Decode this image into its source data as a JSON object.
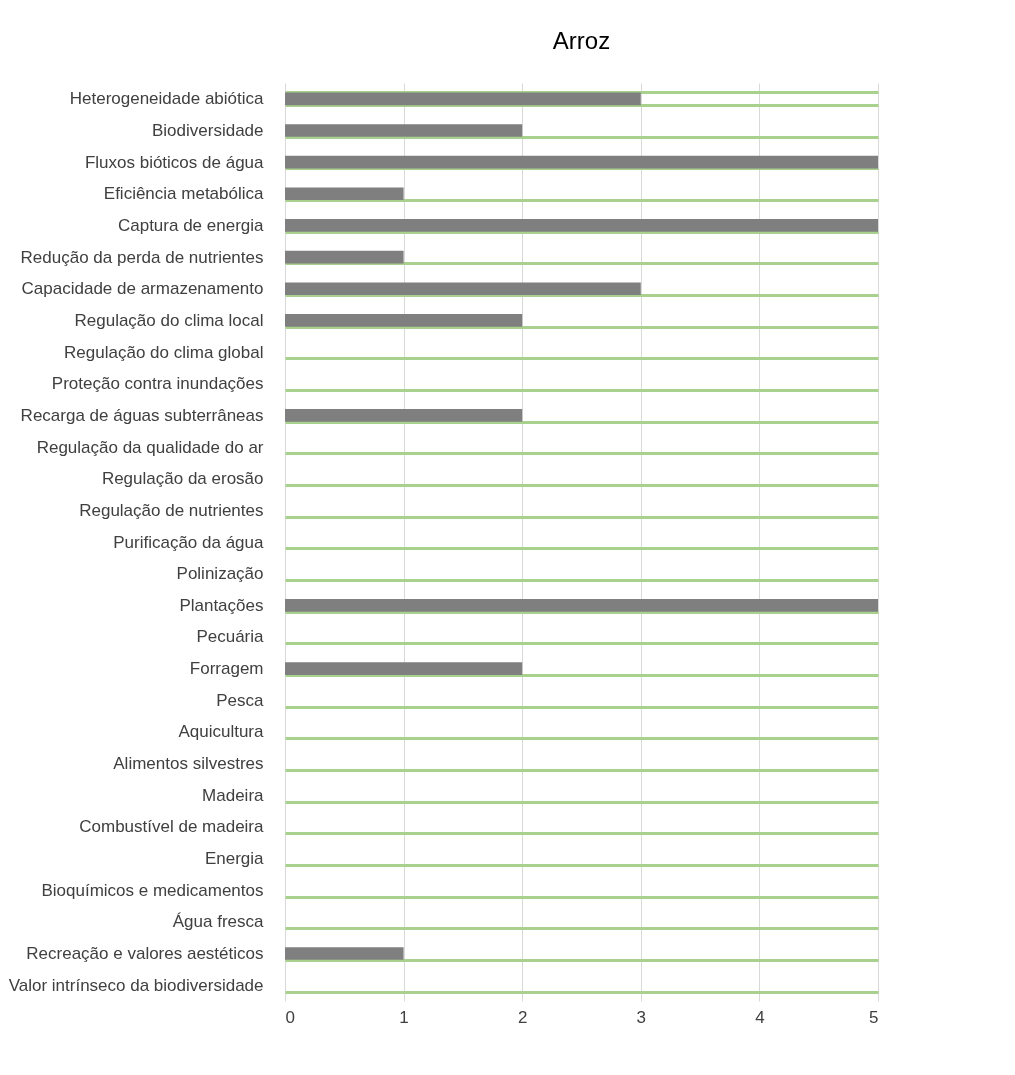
{
  "chart_data": {
    "type": "bar",
    "orientation": "horizontal",
    "title": "Arroz",
    "categories": [
      "Heterogeneidade abiótica",
      "Biodiversidade",
      "Fluxos bióticos de água",
      "Eficiência metabólica",
      "Captura de energia",
      "Redução da perda de nutrientes",
      "Capacidade de armazenamento",
      "Regulação do clima local",
      "Regulação do clima global",
      "Proteção contra inundações",
      "Recarga de águas subterrâneas",
      "Regulação da qualidade do ar",
      "Regulação da erosão",
      "Regulação de nutrientes",
      "Purificação da água",
      "Polinização",
      "Plantações",
      "Pecuária",
      "Forragem",
      "Pesca",
      "Aquicultura",
      "Alimentos silvestres",
      "Madeira",
      "Combustível de madeira",
      "Energia",
      "Bioquímicos e medicamentos",
      "Água fresca",
      "Recreação e valores aestéticos",
      "Valor intrínseco da biodiversidade"
    ],
    "values": [
      3,
      2,
      5,
      1,
      5,
      1,
      3,
      2,
      0,
      0,
      2,
      0,
      0,
      0,
      0,
      0,
      5,
      0,
      2,
      0,
      0,
      0,
      0,
      0,
      0,
      0,
      0,
      1,
      0
    ],
    "color": "#7f7f7f",
    "xlim": [
      0,
      5
    ],
    "xticks": [
      0,
      1,
      2,
      3,
      4,
      5
    ],
    "grid": true
  }
}
